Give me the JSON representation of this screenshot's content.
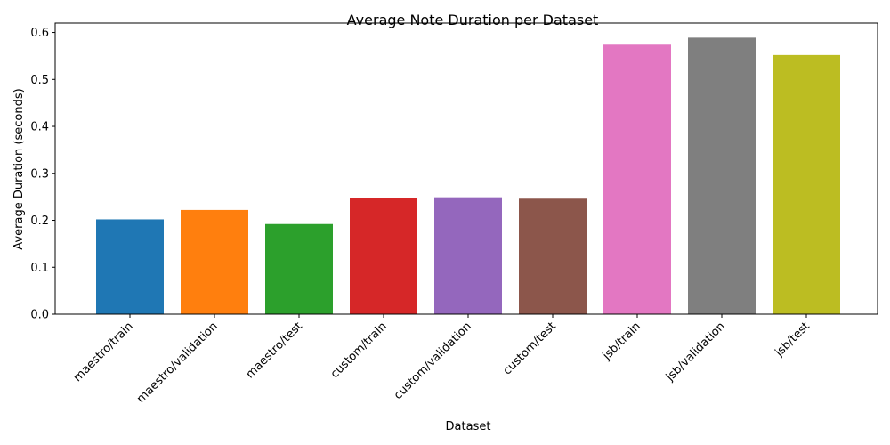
{
  "chart_data": {
    "type": "bar",
    "title": "Average Note Duration per Dataset",
    "xlabel": "Dataset",
    "ylabel": "Average Duration (seconds)",
    "categories": [
      "maestro/train",
      "maestro/validation",
      "maestro/test",
      "custom/train",
      "custom/validation",
      "custom/test",
      "jsb/train",
      "jsb/validation",
      "jsb/test"
    ],
    "values": [
      0.202,
      0.222,
      0.192,
      0.247,
      0.249,
      0.246,
      0.574,
      0.589,
      0.552
    ],
    "colors": [
      "#1f77b4",
      "#ff7f0e",
      "#2ca02c",
      "#d62728",
      "#9467bd",
      "#8c564b",
      "#e377c2",
      "#7f7f7f",
      "#bcbd22"
    ],
    "ylim": [
      0,
      0.62
    ],
    "yticks": [
      0.0,
      0.1,
      0.2,
      0.3,
      0.4,
      0.5,
      0.6
    ],
    "ytick_labels": [
      "0.0",
      "0.1",
      "0.2",
      "0.3",
      "0.4",
      "0.5",
      "0.6"
    ],
    "grid": false,
    "legend": "none",
    "xtick_rotation_deg": 45
  }
}
